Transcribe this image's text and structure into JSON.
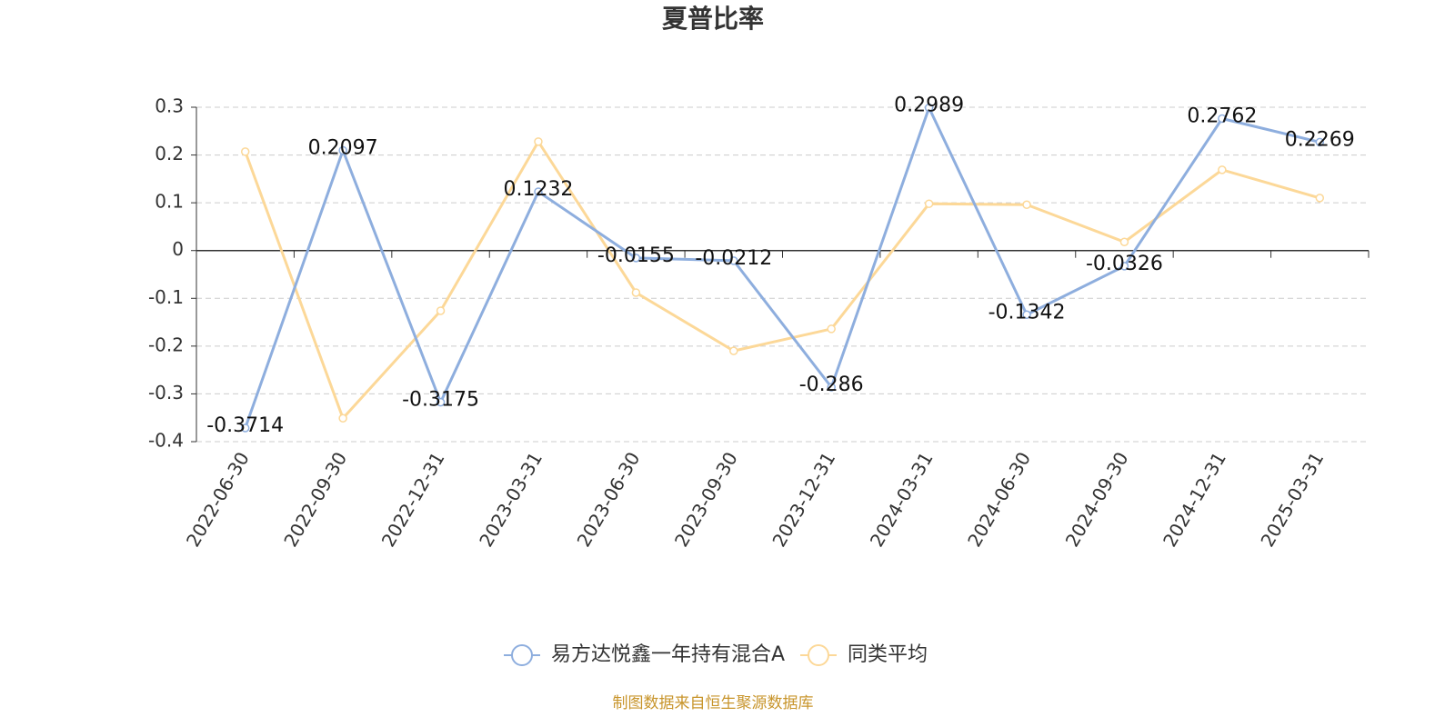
{
  "chart_data": {
    "type": "line",
    "title": "夏普比率",
    "categories": [
      "2022-06-30",
      "2022-09-30",
      "2022-12-31",
      "2023-03-31",
      "2023-06-30",
      "2023-09-30",
      "2023-12-31",
      "2024-03-31",
      "2024-06-30",
      "2024-09-30",
      "2024-12-31",
      "2025-03-31"
    ],
    "series": [
      {
        "name": "易方达悦鑫一年持有混合A",
        "color": "#8eaede",
        "values": [
          -0.3714,
          0.2097,
          -0.3175,
          0.1232,
          -0.0155,
          -0.0212,
          -0.286,
          0.2989,
          -0.1342,
          -0.0326,
          0.2762,
          0.2269
        ]
      },
      {
        "name": "同类平均",
        "color": "#fcd898",
        "values": [
          0.207,
          -0.351,
          -0.126,
          0.228,
          -0.088,
          -0.21,
          -0.164,
          0.098,
          0.096,
          0.018,
          0.169,
          0.11
        ]
      }
    ],
    "ylim": [
      -0.4,
      0.3
    ],
    "yticks": [
      -0.4,
      -0.3,
      -0.2,
      -0.1,
      0,
      0.1,
      0.2,
      0.3
    ],
    "grid": true,
    "legend": "bottom",
    "source": "制图数据来自恒生聚源数据库"
  }
}
